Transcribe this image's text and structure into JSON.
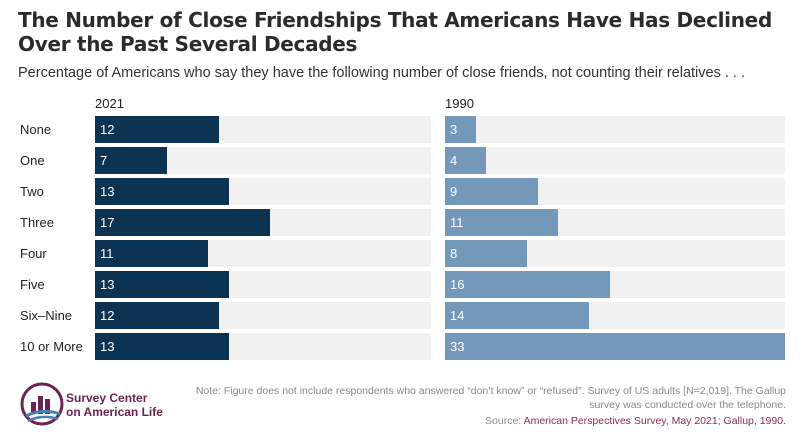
{
  "title": "The Number of Close Friendships That Americans Have Has Declined Over the Past Several Decades",
  "subtitle": "Percentage of Americans who say they have the following number of close friends, not counting their relatives . . .",
  "colors": {
    "series_2021": "#0d3352",
    "series_1990": "#7498b9",
    "track": "#f1f1f1",
    "brand": "#6b2452"
  },
  "chart_data": {
    "type": "bar",
    "orientation": "horizontal",
    "categories": [
      "None",
      "One",
      "Two",
      "Three",
      "Four",
      "Five",
      "Six–Nine",
      "10 or More"
    ],
    "series": [
      {
        "name": "2021",
        "values": [
          12,
          7,
          13,
          17,
          11,
          13,
          12,
          13
        ]
      },
      {
        "name": "1990",
        "values": [
          3,
          4,
          9,
          11,
          8,
          16,
          14,
          33
        ]
      }
    ],
    "xlim": [
      0,
      33
    ],
    "grid": false,
    "legend": "none"
  },
  "footer": {
    "note": "Note: Figure does not include respondents who answered “don’t know” or “refused”. Survey of US adults [N=2,019]. The Gallup survey was conducted over the telephone.",
    "source_prefix": "Source: ",
    "source_text": "American Perspectives Survey, May 2021; Gallup, 1990."
  },
  "logo": {
    "line1": "Survey Center",
    "line2": "on American Life",
    "icon": "survey-center-logo-icon"
  }
}
